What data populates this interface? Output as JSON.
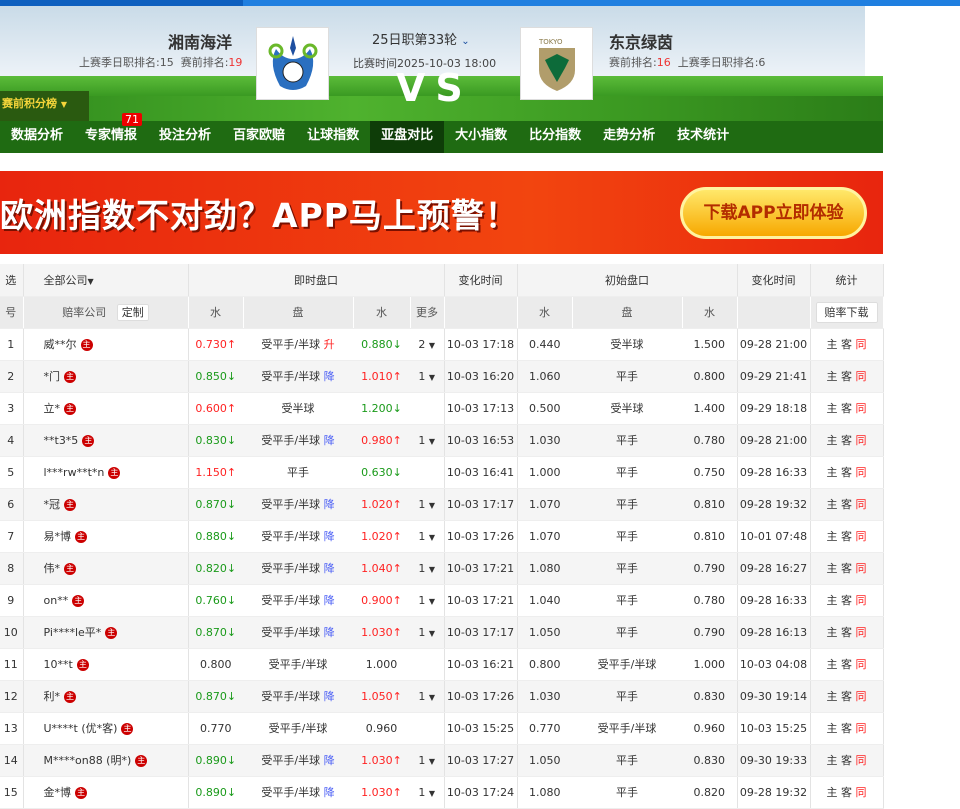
{
  "match": {
    "home": "湘南海洋",
    "home_last": "上赛季日职排名:15",
    "home_pre_label": "赛前排名:",
    "home_pre": "19",
    "away": "东京绿茵",
    "away_pre_label": "赛前排名:",
    "away_pre": "16",
    "away_last": "上赛季日职排名:6",
    "round": "25日职第33轮",
    "time": "比赛时间2025-10-03 18:00",
    "vs": "VS",
    "standing": "赛前积分榜",
    "away_logo_text": "TOKYO"
  },
  "nav": [
    {
      "label": "数据分析"
    },
    {
      "label": "专家情报",
      "badge": "71"
    },
    {
      "label": "投注分析"
    },
    {
      "label": "百家欧赔"
    },
    {
      "label": "让球指数"
    },
    {
      "label": "亚盘对比",
      "active": true
    },
    {
      "label": "大小指数"
    },
    {
      "label": "比分指数"
    },
    {
      "label": "走势分析"
    },
    {
      "label": "技术统计"
    }
  ],
  "banner": {
    "text": "欧洲指数不对劲？APP马上预警！",
    "button": "下载APP立即体验"
  },
  "table": {
    "h": {
      "sel": "选",
      "all": "全部公司",
      "live": "即时盘口",
      "chg": "变化时间",
      "init": "初始盘口",
      "chg2": "变化时间",
      "stat": "统计",
      "no": "号",
      "company": "赔率公司",
      "custom": "定制",
      "w": "水",
      "pan": "盘",
      "w2": "水",
      "more": "更多",
      "iw": "水",
      "ipan": "盘",
      "iw2": "水",
      "download": "赔率下载"
    },
    "zhu": "主",
    "stat": [
      "主",
      "客",
      "同"
    ],
    "rows": [
      [
        "1",
        "威**尔",
        "0.730",
        "up",
        "受平手/半球",
        "升",
        "0.880",
        "down",
        "2",
        "10-03 17:18",
        "0.440",
        "受半球",
        "1.500",
        "09-28 21:00"
      ],
      [
        "2",
        "*门",
        "0.850",
        "down",
        "受平手/半球",
        "降",
        "1.010",
        "up",
        "1",
        "10-03 16:20",
        "1.060",
        "平手",
        "0.800",
        "09-29 21:41"
      ],
      [
        "3",
        "立*",
        "0.600",
        "up",
        "受半球",
        "",
        "1.200",
        "down",
        "",
        "10-03 17:13",
        "0.500",
        "受半球",
        "1.400",
        "09-29 18:18"
      ],
      [
        "4",
        "**t3*5",
        "0.830",
        "down",
        "受平手/半球",
        "降",
        "0.980",
        "up",
        "1",
        "10-03 16:53",
        "1.030",
        "平手",
        "0.780",
        "09-28 21:00"
      ],
      [
        "5",
        "l***rw**t*n",
        "1.150",
        "up",
        "平手",
        "",
        "0.630",
        "down",
        "",
        "10-03 16:41",
        "1.000",
        "平手",
        "0.750",
        "09-28 16:33"
      ],
      [
        "6",
        "*冠",
        "0.870",
        "down",
        "受平手/半球",
        "降",
        "1.020",
        "up",
        "1",
        "10-03 17:17",
        "1.070",
        "平手",
        "0.810",
        "09-28 19:32"
      ],
      [
        "7",
        "易*博",
        "0.880",
        "down",
        "受平手/半球",
        "降",
        "1.020",
        "up",
        "1",
        "10-03 17:26",
        "1.070",
        "平手",
        "0.810",
        "10-01 07:48"
      ],
      [
        "8",
        "伟*",
        "0.820",
        "down",
        "受平手/半球",
        "降",
        "1.040",
        "up",
        "1",
        "10-03 17:21",
        "1.080",
        "平手",
        "0.790",
        "09-28 16:27"
      ],
      [
        "9",
        "on**",
        "0.760",
        "down",
        "受平手/半球",
        "降",
        "0.900",
        "up",
        "1",
        "10-03 17:21",
        "1.040",
        "平手",
        "0.780",
        "09-28 16:33"
      ],
      [
        "10",
        "Pi****le平*",
        "0.870",
        "down",
        "受平手/半球",
        "降",
        "1.030",
        "up",
        "1",
        "10-03 17:17",
        "1.050",
        "平手",
        "0.790",
        "09-28 16:13"
      ],
      [
        "11",
        "10**t",
        "0.800",
        "",
        "受平手/半球",
        "",
        "1.000",
        "",
        "",
        "10-03 16:21",
        "0.800",
        "受平手/半球",
        "1.000",
        "10-03 04:08"
      ],
      [
        "12",
        "利*",
        "0.870",
        "down",
        "受平手/半球",
        "降",
        "1.050",
        "up",
        "1",
        "10-03 17:26",
        "1.030",
        "平手",
        "0.830",
        "09-30 19:14"
      ],
      [
        "13",
        "U****t (优*客)",
        "0.770",
        "",
        "受平手/半球",
        "",
        "0.960",
        "",
        "",
        "10-03 15:25",
        "0.770",
        "受平手/半球",
        "0.960",
        "10-03 15:25"
      ],
      [
        "14",
        "M****on88 (明*)",
        "0.890",
        "down",
        "受平手/半球",
        "降",
        "1.030",
        "up",
        "1",
        "10-03 17:27",
        "1.050",
        "平手",
        "0.830",
        "09-30 19:33"
      ],
      [
        "15",
        "金*博",
        "0.890",
        "down",
        "受平手/半球",
        "降",
        "1.030",
        "up",
        "1",
        "10-03 17:24",
        "1.080",
        "平手",
        "0.820",
        "09-28 19:32"
      ]
    ]
  },
  "colors": {
    "up": "#ff2222",
    "down": "#1a9a1a",
    "change": "#4a5ef5",
    "nav_bg": "#1f6b12"
  }
}
